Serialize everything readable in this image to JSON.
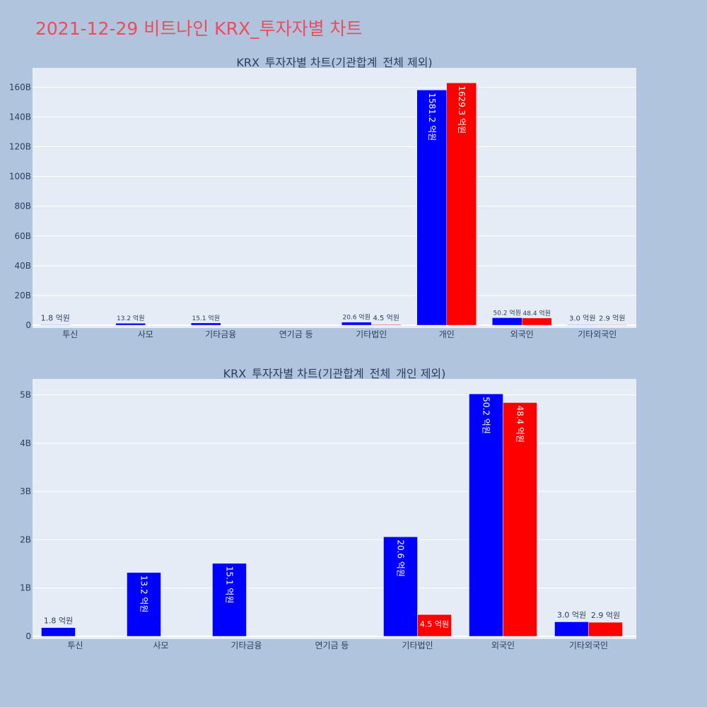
{
  "page_title": "2021-12-29 비트나인 KRX_투자자별 차트",
  "colors": {
    "page_bg": "#b0c4de",
    "plot_bg": "#e5ecf6",
    "title": "#ef4b5b",
    "text": "#2a3f5f",
    "buy": "#0000ff",
    "sell": "#ff0000"
  },
  "chart_data": [
    {
      "type": "bar",
      "title": "KRX_투자자별 차트(기관합계_전체 제외)",
      "categories": [
        "투신",
        "사모",
        "기타금융",
        "연기금 등",
        "기타법인",
        "개인",
        "외국인",
        "기타외국인"
      ],
      "series": [
        {
          "name": "series-blue",
          "color": "#0000ff",
          "values": [
            180000000,
            1320000000,
            1510000000,
            null,
            2060000000,
            158120000000,
            5020000000,
            300000000
          ],
          "labels": [
            "1.8 억원",
            "13.2 억원",
            "15.1 억원",
            "",
            "20.6 억원",
            "1581.2 억원",
            "50.2 억원",
            "3.0 억원"
          ]
        },
        {
          "name": "series-red",
          "color": "#ff0000",
          "values": [
            null,
            null,
            null,
            null,
            450000000,
            162930000000,
            4840000000,
            290000000
          ],
          "labels": [
            "",
            "",
            "",
            "",
            "4.5 억원",
            "1629.3 억원",
            "48.4 억원",
            "2.9 억원"
          ]
        }
      ],
      "yticks": [
        0,
        20000000000,
        40000000000,
        60000000000,
        80000000000,
        100000000000,
        120000000000,
        140000000000,
        160000000000
      ],
      "ytick_labels": [
        "0",
        "20B",
        "40B",
        "60B",
        "80B",
        "100B",
        "120B",
        "140B",
        "160B"
      ],
      "ylim": [
        0,
        173000000000
      ]
    },
    {
      "type": "bar",
      "title": "KRX_투자자별 차트(기관합계_전체_개인 제외)",
      "categories": [
        "투신",
        "사모",
        "기타금융",
        "연기금 등",
        "기타법인",
        "외국인",
        "기타외국인"
      ],
      "series": [
        {
          "name": "series-blue",
          "color": "#0000ff",
          "values": [
            180000000,
            1320000000,
            1510000000,
            null,
            2060000000,
            5020000000,
            300000000
          ],
          "labels": [
            "1.8 억원",
            "13.2 억원",
            "15.1 억원",
            "",
            "20.6 억원",
            "50.2 억원",
            "3.0 억원"
          ]
        },
        {
          "name": "series-red",
          "color": "#ff0000",
          "values": [
            null,
            null,
            null,
            null,
            450000000,
            4840000000,
            290000000
          ],
          "labels": [
            "",
            "",
            "",
            "",
            "4.5 억원",
            "48.4 억원",
            "2.9 억원"
          ]
        }
      ],
      "yticks": [
        0,
        1000000000,
        2000000000,
        3000000000,
        4000000000,
        5000000000
      ],
      "ytick_labels": [
        "0",
        "1B",
        "2B",
        "3B",
        "4B",
        "5B"
      ],
      "ylim": [
        0,
        5330000000
      ]
    }
  ]
}
